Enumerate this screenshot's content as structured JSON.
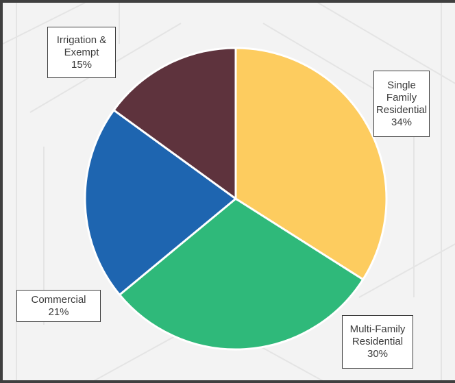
{
  "chart_data": {
    "type": "pie",
    "title": "",
    "start_angle_deg": 0,
    "direction": "clockwise",
    "slices": [
      {
        "label_lines": [
          "Single",
          "Family",
          "Residential"
        ],
        "value": 34,
        "percent_label": "34%",
        "color": "#fdcc5f"
      },
      {
        "label_lines": [
          "Multi-Family",
          "Residential"
        ],
        "value": 30,
        "percent_label": "30%",
        "color": "#2fb97a"
      },
      {
        "label_lines": [
          "Commercial"
        ],
        "value": 21,
        "percent_label": "21%",
        "color": "#1e65b0"
      },
      {
        "label_lines": [
          "Irrigation &",
          "Exempt"
        ],
        "value": 15,
        "percent_label": "15%",
        "color": "#5e333d"
      }
    ]
  }
}
